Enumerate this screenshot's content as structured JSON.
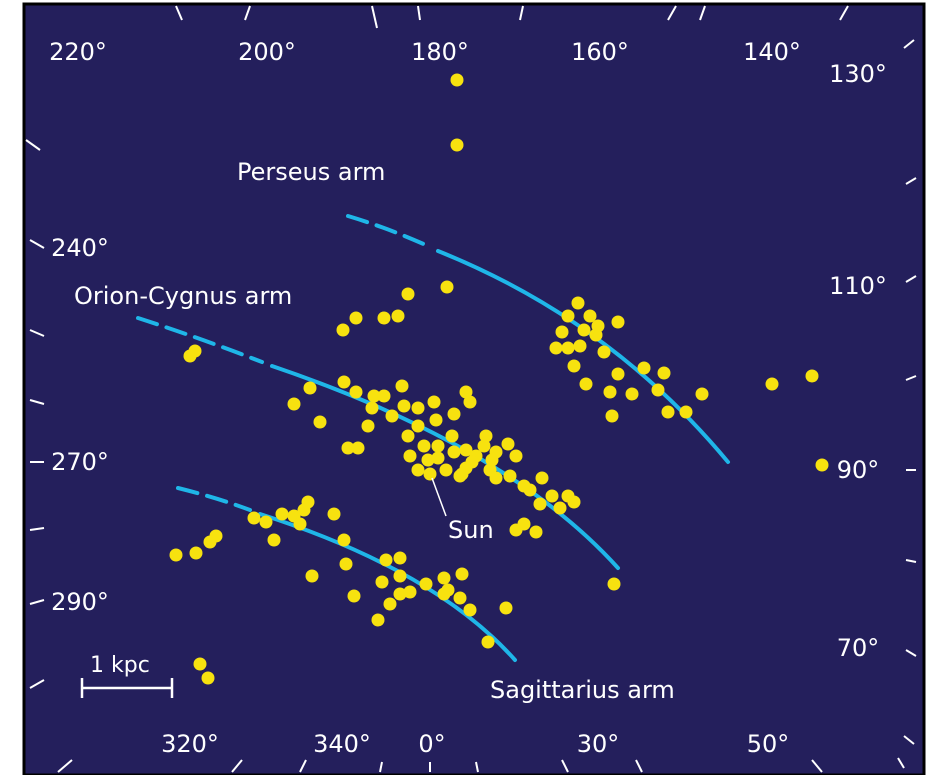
{
  "colors": {
    "background": "#241f5c",
    "star": "#f7e20f",
    "arm": "#1fb6e8",
    "text": "#ffffff",
    "border": "#000000"
  },
  "top_labels": [
    "220°",
    "200°",
    "180°",
    "160°",
    "140°"
  ],
  "right_labels": [
    "130°",
    "110°",
    "90°",
    "70°"
  ],
  "left_labels": [
    "240°",
    "270°",
    "290°"
  ],
  "bottom_labels": [
    "320°",
    "340°",
    "0°",
    "30°",
    "50°"
  ],
  "arms": {
    "perseus": "Perseus arm",
    "orion": "Orion-Cygnus arm",
    "sagittarius": "Sagittarius arm"
  },
  "sun_label": "Sun",
  "scale_label": "1 kpc"
}
